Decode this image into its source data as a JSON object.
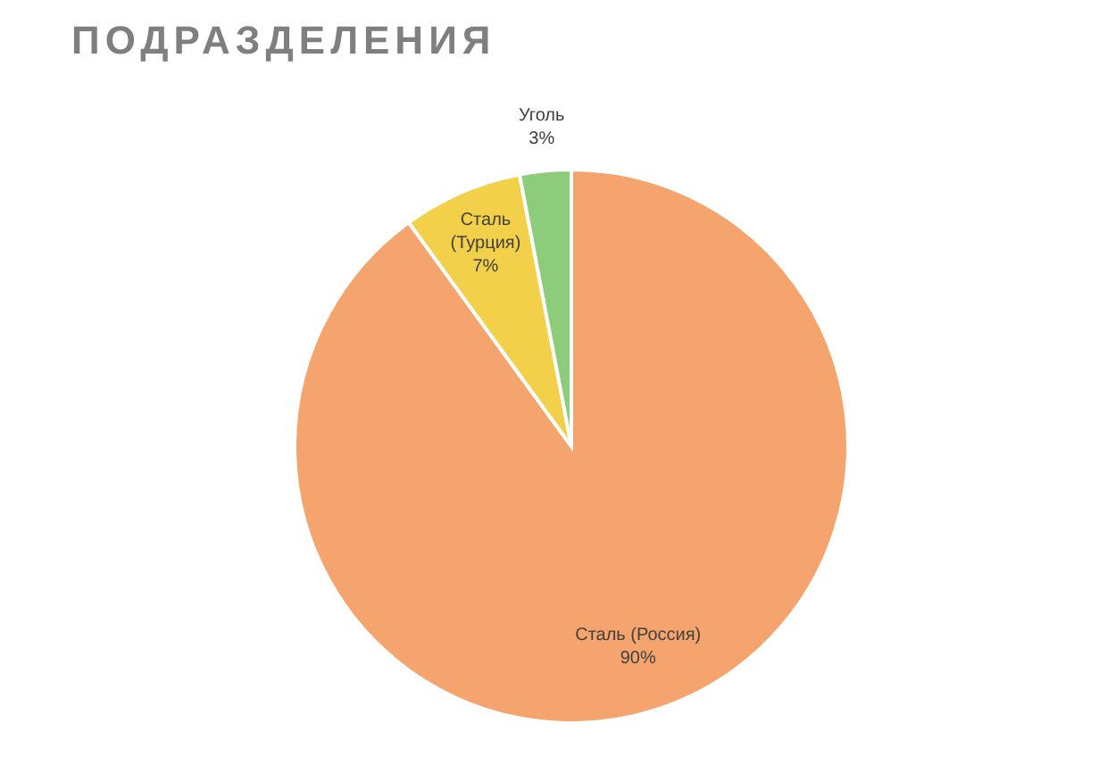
{
  "chart_data": {
    "type": "pie",
    "title": "ПОДРАЗДЕЛЕНИЯ",
    "categories": [
      "Сталь (Россия)",
      "Сталь (Турция)",
      "Уголь"
    ],
    "values": [
      90,
      7,
      3
    ],
    "value_labels": [
      "90%",
      "7%",
      "3%"
    ],
    "colors": [
      "#f4a46c",
      "#f2d04a",
      "#8ccc7a"
    ],
    "legend": false
  }
}
